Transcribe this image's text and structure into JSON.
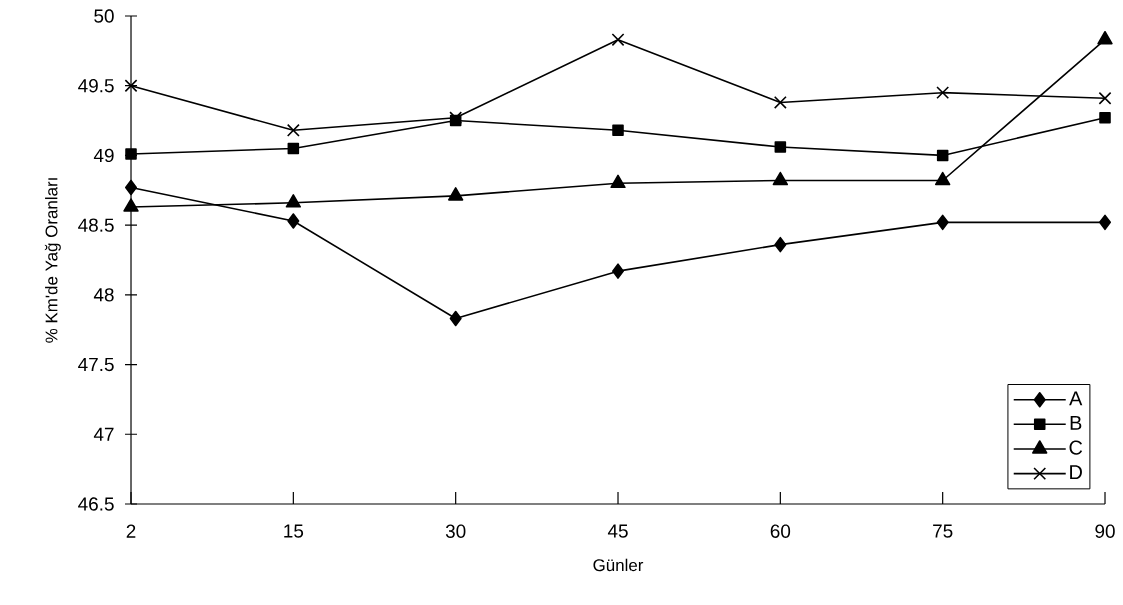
{
  "chart_data": {
    "type": "line",
    "xlabel": "Günler",
    "ylabel": "% Km'de Yağ Oranları",
    "categories": [
      "2",
      "15",
      "30",
      "45",
      "60",
      "75",
      "90"
    ],
    "ylim": [
      46.5,
      50
    ],
    "yticks": [
      46.5,
      47,
      47.5,
      48,
      48.5,
      49,
      49.5,
      50
    ],
    "legend": "bottom right",
    "grid": false,
    "line_style": "solid",
    "series": [
      {
        "name": "A",
        "color": "#000000",
        "marker": "diamond",
        "values": [
          48.77,
          48.53,
          47.83,
          48.17,
          48.36,
          48.52,
          48.52
        ]
      },
      {
        "name": "B",
        "color": "#000000",
        "marker": "square",
        "values": [
          49.01,
          49.05,
          49.25,
          49.18,
          49.06,
          49.0,
          49.27
        ]
      },
      {
        "name": "C",
        "color": "#000000",
        "marker": "triangle",
        "values": [
          48.63,
          48.66,
          48.71,
          48.8,
          48.82,
          48.82,
          49.83
        ]
      },
      {
        "name": "D",
        "color": "#000000",
        "marker": "cross",
        "values": [
          49.5,
          49.18,
          49.27,
          49.83,
          49.38,
          49.45,
          49.41
        ]
      }
    ]
  }
}
